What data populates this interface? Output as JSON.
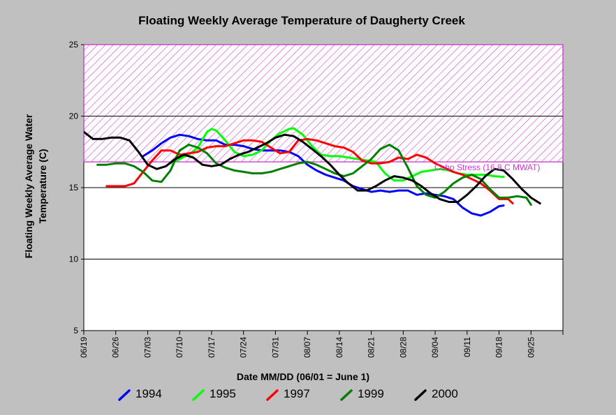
{
  "chart_data": {
    "type": "line",
    "title": "Floating Weekly Average Temperature of Daugherty Creek",
    "xlabel": "Date MM/DD (06/01 = June 1)",
    "ylabel": "Floating Weekly Average Water Temperature (C)",
    "x_tick_labels": [
      "06/19",
      "06/26",
      "07/03",
      "07/10",
      "07/17",
      "07/24",
      "07/31",
      "08/07",
      "08/14",
      "08/21",
      "08/28",
      "09/04",
      "09/11",
      "09/18",
      "09/25"
    ],
    "xlim": [
      "06/19",
      "10/02"
    ],
    "ylim": [
      5,
      25
    ],
    "y_ticks": [
      5,
      10,
      15,
      20,
      25
    ],
    "grid": "horizontal",
    "stress_band": {
      "label": "Coho Stress (16.8 C MWAT)",
      "from": 16.8,
      "to": 25,
      "color": "#cc33cc"
    },
    "series": [
      {
        "name": "1994",
        "color": "#0000ff",
        "points": [
          [
            "07/02",
            17.2
          ],
          [
            "07/04",
            17.6
          ],
          [
            "07/06",
            18.1
          ],
          [
            "07/08",
            18.5
          ],
          [
            "07/10",
            18.7
          ],
          [
            "07/12",
            18.6
          ],
          [
            "07/14",
            18.4
          ],
          [
            "07/16",
            18.3
          ],
          [
            "07/18",
            18.3
          ],
          [
            "07/20",
            18.0
          ],
          [
            "07/22",
            18.0
          ],
          [
            "07/24",
            17.9
          ],
          [
            "07/26",
            17.7
          ],
          [
            "07/28",
            17.6
          ],
          [
            "07/30",
            17.6
          ],
          [
            "08/01",
            17.6
          ],
          [
            "08/03",
            17.5
          ],
          [
            "08/05",
            17.2
          ],
          [
            "08/07",
            16.6
          ],
          [
            "08/09",
            16.2
          ],
          [
            "08/11",
            15.9
          ],
          [
            "08/13",
            15.7
          ],
          [
            "08/15",
            15.5
          ],
          [
            "08/17",
            15.1
          ],
          [
            "08/19",
            14.9
          ],
          [
            "08/21",
            14.7
          ],
          [
            "08/23",
            14.8
          ],
          [
            "08/25",
            14.7
          ],
          [
            "08/27",
            14.8
          ],
          [
            "08/29",
            14.8
          ],
          [
            "08/31",
            14.5
          ],
          [
            "09/02",
            14.6
          ],
          [
            "09/04",
            14.5
          ],
          [
            "09/06",
            14.4
          ],
          [
            "09/08",
            14.2
          ],
          [
            "09/10",
            13.6
          ],
          [
            "09/12",
            13.2
          ],
          [
            "09/14",
            13.05
          ],
          [
            "09/16",
            13.3
          ],
          [
            "09/18",
            13.7
          ],
          [
            "09/19",
            13.75
          ]
        ]
      },
      {
        "name": "1995",
        "color": "#00ff00",
        "points": [
          [
            "07/08",
            16.7
          ],
          [
            "07/10",
            17.0
          ],
          [
            "07/12",
            17.3
          ],
          [
            "07/14",
            17.8
          ],
          [
            "07/16",
            18.9
          ],
          [
            "07/17",
            19.1
          ],
          [
            "07/18",
            19.0
          ],
          [
            "07/20",
            18.3
          ],
          [
            "07/22",
            17.5
          ],
          [
            "07/24",
            17.2
          ],
          [
            "07/26",
            17.3
          ],
          [
            "07/28",
            17.6
          ],
          [
            "07/30",
            18.3
          ],
          [
            "08/01",
            18.8
          ],
          [
            "08/03",
            19.1
          ],
          [
            "08/04",
            19.15
          ],
          [
            "08/06",
            18.7
          ],
          [
            "08/08",
            17.9
          ],
          [
            "08/10",
            17.3
          ],
          [
            "08/12",
            17.2
          ],
          [
            "08/14",
            17.2
          ],
          [
            "08/16",
            17.1
          ],
          [
            "08/18",
            17.0
          ],
          [
            "08/20",
            16.9
          ],
          [
            "08/22",
            16.8
          ],
          [
            "08/24",
            16.0
          ],
          [
            "08/26",
            15.5
          ],
          [
            "08/28",
            15.5
          ],
          [
            "08/30",
            15.8
          ],
          [
            "09/01",
            16.1
          ],
          [
            "09/03",
            16.2
          ],
          [
            "09/05",
            16.3
          ],
          [
            "09/07",
            16.2
          ],
          [
            "09/09",
            16.0
          ],
          [
            "09/11",
            15.9
          ],
          [
            "09/13",
            15.9
          ],
          [
            "09/15",
            15.9
          ],
          [
            "09/17",
            15.8
          ],
          [
            "09/19",
            15.75
          ]
        ]
      },
      {
        "name": "1997",
        "color": "#ff0000",
        "points": [
          [
            "06/24",
            15.1
          ],
          [
            "06/26",
            15.1
          ],
          [
            "06/28",
            15.1
          ],
          [
            "06/30",
            15.3
          ],
          [
            "07/02",
            16.1
          ],
          [
            "07/04",
            16.9
          ],
          [
            "07/06",
            17.6
          ],
          [
            "07/08",
            17.6
          ],
          [
            "07/10",
            17.3
          ],
          [
            "07/12",
            17.4
          ],
          [
            "07/14",
            17.5
          ],
          [
            "07/16",
            17.8
          ],
          [
            "07/18",
            17.9
          ],
          [
            "07/20",
            17.9
          ],
          [
            "07/22",
            18.1
          ],
          [
            "07/24",
            18.3
          ],
          [
            "07/26",
            18.3
          ],
          [
            "07/28",
            18.2
          ],
          [
            "07/30",
            17.8
          ],
          [
            "08/01",
            17.4
          ],
          [
            "08/03",
            17.5
          ],
          [
            "08/05",
            18.3
          ],
          [
            "08/07",
            18.4
          ],
          [
            "08/09",
            18.3
          ],
          [
            "08/11",
            18.1
          ],
          [
            "08/13",
            17.9
          ],
          [
            "08/15",
            17.8
          ],
          [
            "08/17",
            17.5
          ],
          [
            "08/19",
            16.9
          ],
          [
            "08/21",
            16.7
          ],
          [
            "08/23",
            16.7
          ],
          [
            "08/25",
            16.8
          ],
          [
            "08/27",
            17.1
          ],
          [
            "08/29",
            17.0
          ],
          [
            "08/31",
            17.3
          ],
          [
            "09/02",
            17.1
          ],
          [
            "09/04",
            16.7
          ],
          [
            "09/06",
            16.4
          ],
          [
            "09/08",
            16.1
          ],
          [
            "09/10",
            15.9
          ],
          [
            "09/12",
            15.6
          ],
          [
            "09/14",
            15.3
          ],
          [
            "09/16",
            14.8
          ],
          [
            "09/18",
            14.2
          ],
          [
            "09/20",
            14.2
          ],
          [
            "09/21",
            13.9
          ]
        ]
      },
      {
        "name": "1999",
        "color": "#008000",
        "points": [
          [
            "06/22",
            16.6
          ],
          [
            "06/24",
            16.6
          ],
          [
            "06/26",
            16.7
          ],
          [
            "06/28",
            16.7
          ],
          [
            "06/30",
            16.5
          ],
          [
            "07/02",
            16.1
          ],
          [
            "07/04",
            15.5
          ],
          [
            "07/06",
            15.4
          ],
          [
            "07/08",
            16.2
          ],
          [
            "07/10",
            17.6
          ],
          [
            "07/12",
            18.0
          ],
          [
            "07/14",
            17.8
          ],
          [
            "07/16",
            17.4
          ],
          [
            "07/18",
            16.7
          ],
          [
            "07/20",
            16.4
          ],
          [
            "07/22",
            16.2
          ],
          [
            "07/24",
            16.1
          ],
          [
            "07/26",
            16.0
          ],
          [
            "07/28",
            16.0
          ],
          [
            "07/30",
            16.1
          ],
          [
            "08/01",
            16.3
          ],
          [
            "08/03",
            16.5
          ],
          [
            "08/05",
            16.7
          ],
          [
            "08/07",
            16.8
          ],
          [
            "08/09",
            16.6
          ],
          [
            "08/11",
            16.3
          ],
          [
            "08/13",
            16.0
          ],
          [
            "08/15",
            15.8
          ],
          [
            "08/17",
            16.0
          ],
          [
            "08/19",
            16.5
          ],
          [
            "08/21",
            17.0
          ],
          [
            "08/23",
            17.7
          ],
          [
            "08/25",
            18.0
          ],
          [
            "08/27",
            17.6
          ],
          [
            "08/29",
            16.4
          ],
          [
            "08/31",
            15.1
          ],
          [
            "09/02",
            14.5
          ],
          [
            "09/04",
            14.3
          ],
          [
            "09/06",
            14.7
          ],
          [
            "09/08",
            15.3
          ],
          [
            "09/10",
            15.7
          ],
          [
            "09/12",
            15.9
          ],
          [
            "09/14",
            15.6
          ],
          [
            "09/16",
            14.9
          ],
          [
            "09/18",
            14.3
          ],
          [
            "09/20",
            14.3
          ],
          [
            "09/22",
            14.4
          ],
          [
            "09/24",
            14.3
          ],
          [
            "09/25",
            13.8
          ]
        ]
      },
      {
        "name": "2000",
        "color": "#000000",
        "points": [
          [
            "06/19",
            18.9
          ],
          [
            "06/21",
            18.4
          ],
          [
            "06/23",
            18.4
          ],
          [
            "06/25",
            18.5
          ],
          [
            "06/27",
            18.5
          ],
          [
            "06/29",
            18.3
          ],
          [
            "07/01",
            17.5
          ],
          [
            "07/03",
            16.6
          ],
          [
            "07/05",
            16.3
          ],
          [
            "07/07",
            16.5
          ],
          [
            "07/09",
            17.0
          ],
          [
            "07/11",
            17.3
          ],
          [
            "07/13",
            17.1
          ],
          [
            "07/15",
            16.6
          ],
          [
            "07/17",
            16.5
          ],
          [
            "07/19",
            16.6
          ],
          [
            "07/21",
            17.0
          ],
          [
            "07/23",
            17.3
          ],
          [
            "07/25",
            17.5
          ],
          [
            "07/27",
            17.8
          ],
          [
            "07/29",
            18.1
          ],
          [
            "07/31",
            18.5
          ],
          [
            "08/02",
            18.7
          ],
          [
            "08/04",
            18.6
          ],
          [
            "08/06",
            18.2
          ],
          [
            "08/08",
            17.7
          ],
          [
            "08/10",
            17.2
          ],
          [
            "08/12",
            16.6
          ],
          [
            "08/14",
            15.9
          ],
          [
            "08/16",
            15.3
          ],
          [
            "08/18",
            14.8
          ],
          [
            "08/20",
            14.8
          ],
          [
            "08/22",
            15.1
          ],
          [
            "08/24",
            15.5
          ],
          [
            "08/26",
            15.8
          ],
          [
            "08/28",
            15.7
          ],
          [
            "08/30",
            15.5
          ],
          [
            "09/01",
            15.1
          ],
          [
            "09/03",
            14.6
          ],
          [
            "09/05",
            14.2
          ],
          [
            "09/07",
            14.0
          ],
          [
            "09/09",
            14.0
          ],
          [
            "09/11",
            14.5
          ],
          [
            "09/13",
            15.1
          ],
          [
            "09/15",
            15.8
          ],
          [
            "09/17",
            16.3
          ],
          [
            "09/19",
            16.2
          ],
          [
            "09/21",
            15.6
          ],
          [
            "09/23",
            14.9
          ],
          [
            "09/25",
            14.3
          ],
          [
            "09/27",
            13.9
          ]
        ]
      }
    ]
  }
}
